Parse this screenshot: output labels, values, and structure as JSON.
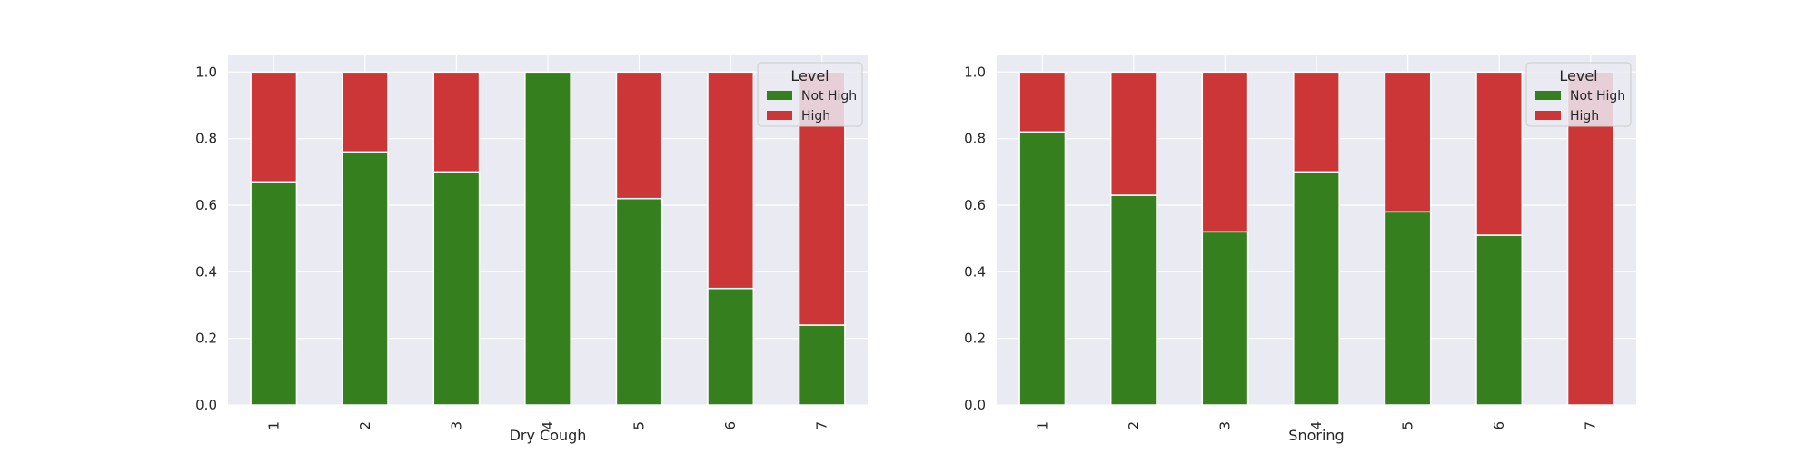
{
  "colors": {
    "plot_background": "#eaeaf2",
    "grid": "#ffffff",
    "bar_edge": "#ffffff",
    "not_high": "#367f1e",
    "high": "#cc3636"
  },
  "chart_data": [
    {
      "type": "bar",
      "stacked": true,
      "xlabel": "Dry Cough",
      "ylabel": "",
      "ylim": [
        0,
        1.05
      ],
      "yticks": [
        "0.0",
        "0.2",
        "0.4",
        "0.6",
        "0.8",
        "1.0"
      ],
      "categories": [
        "1",
        "2",
        "3",
        "4",
        "5",
        "6",
        "7"
      ],
      "legend": {
        "title": "Level",
        "placement": "top-right"
      },
      "grid": true,
      "series": [
        {
          "name": "Not High",
          "color": "#367f1e",
          "values": [
            0.67,
            0.76,
            0.7,
            1.0,
            0.62,
            0.35,
            0.24
          ]
        },
        {
          "name": "High",
          "color": "#cc3636",
          "values": [
            0.33,
            0.24,
            0.3,
            0.0,
            0.38,
            0.65,
            0.76
          ]
        }
      ]
    },
    {
      "type": "bar",
      "stacked": true,
      "xlabel": "Snoring",
      "ylabel": "",
      "ylim": [
        0,
        1.05
      ],
      "yticks": [
        "0.0",
        "0.2",
        "0.4",
        "0.6",
        "0.8",
        "1.0"
      ],
      "categories": [
        "1",
        "2",
        "3",
        "4",
        "5",
        "6",
        "7"
      ],
      "legend": {
        "title": "Level",
        "placement": "top-right"
      },
      "grid": true,
      "series": [
        {
          "name": "Not High",
          "color": "#367f1e",
          "values": [
            0.82,
            0.63,
            0.52,
            0.7,
            0.58,
            0.51,
            0.0
          ]
        },
        {
          "name": "High",
          "color": "#cc3636",
          "values": [
            0.18,
            0.37,
            0.48,
            0.3,
            0.42,
            0.49,
            1.0
          ]
        }
      ]
    }
  ]
}
